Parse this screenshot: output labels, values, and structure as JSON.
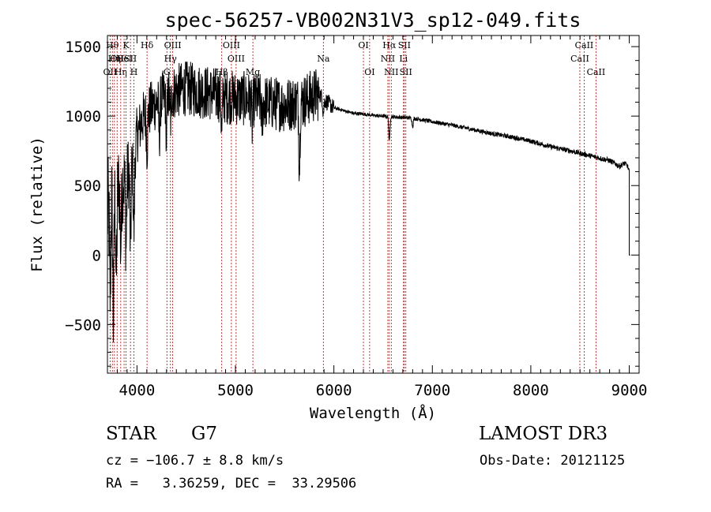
{
  "chart_data": {
    "type": "line",
    "title": "spec-56257-VB002N31V3_sp12-049.fits",
    "xlabel": "Wavelength (Å)",
    "ylabel": "Flux (relative)",
    "xlim": [
      3700,
      9100
    ],
    "ylim": [
      -850,
      1580
    ],
    "xticks": [
      4000,
      5000,
      6000,
      7000,
      8000,
      9000
    ],
    "yticks": [
      -500,
      0,
      500,
      1000,
      1500
    ],
    "continuum": [
      [
        3700,
        300
      ],
      [
        3750,
        420
      ],
      [
        3800,
        480
      ],
      [
        3850,
        520
      ],
      [
        3900,
        580
      ],
      [
        3950,
        650
      ],
      [
        4000,
        850
      ],
      [
        4050,
        970
      ],
      [
        4100,
        1020
      ],
      [
        4200,
        1100
      ],
      [
        4300,
        1150
      ],
      [
        4400,
        1180
      ],
      [
        4500,
        1200
      ],
      [
        4600,
        1185
      ],
      [
        4700,
        1170
      ],
      [
        4800,
        1155
      ],
      [
        4900,
        1140
      ],
      [
        5000,
        1130
      ],
      [
        5100,
        1125
      ],
      [
        5200,
        1120
      ],
      [
        5300,
        1100
      ],
      [
        5400,
        1090
      ],
      [
        5500,
        1080
      ],
      [
        5600,
        1095
      ],
      [
        5700,
        1110
      ],
      [
        5800,
        1150
      ],
      [
        5850,
        1160
      ],
      [
        5900,
        1120
      ],
      [
        6000,
        1060
      ],
      [
        6100,
        1040
      ],
      [
        6200,
        1020
      ],
      [
        6300,
        1015
      ],
      [
        6400,
        1005
      ],
      [
        6500,
        1000
      ],
      [
        6600,
        995
      ],
      [
        6700,
        990
      ],
      [
        6800,
        985
      ],
      [
        7000,
        960
      ],
      [
        7200,
        935
      ],
      [
        7400,
        905
      ],
      [
        7600,
        875
      ],
      [
        7800,
        850
      ],
      [
        8000,
        820
      ],
      [
        8200,
        780
      ],
      [
        8400,
        750
      ],
      [
        8600,
        715
      ],
      [
        8800,
        680
      ],
      [
        8900,
        640
      ],
      [
        8950,
        660
      ],
      [
        8980,
        645
      ],
      [
        9000,
        600
      ]
    ],
    "features": [
      {
        "x": 3727,
        "depth": 650
      },
      {
        "x": 3760,
        "depth": 900
      },
      {
        "x": 3790,
        "depth": 650
      },
      {
        "x": 3835,
        "depth": 450
      },
      {
        "x": 3889,
        "depth": 500
      },
      {
        "x": 3934,
        "depth": 600
      },
      {
        "x": 3969,
        "depth": 550
      },
      {
        "x": 4102,
        "depth": 250
      },
      {
        "x": 4227,
        "depth": 250
      },
      {
        "x": 4300,
        "depth": 300
      },
      {
        "x": 4340,
        "depth": 200
      },
      {
        "x": 4861,
        "depth": 250
      },
      {
        "x": 5172,
        "depth": 200
      },
      {
        "x": 5270,
        "depth": 150
      },
      {
        "x": 5650,
        "depth": 450
      },
      {
        "x": 5893,
        "depth": 100
      },
      {
        "x": 6563,
        "depth": 180
      },
      {
        "x": 6800,
        "depth": 60
      }
    ],
    "lines": [
      {
        "x": 3727,
        "label": "OII",
        "row": 2
      },
      {
        "x": 3750,
        "label": "Hθ",
        "row": 0
      },
      {
        "x": 3771,
        "label": "Hη",
        "row": 1
      },
      {
        "x": 3798,
        "label": "OII",
        "row": 1
      },
      {
        "x": 3835,
        "label": "Hη",
        "row": 2
      },
      {
        "x": 3869,
        "label": "HeI",
        "row": 1
      },
      {
        "x": 3889,
        "label": "K",
        "row": 0
      },
      {
        "x": 3934,
        "label": "SII",
        "row": 1
      },
      {
        "x": 3969,
        "label": "H",
        "row": 2
      },
      {
        "x": 4102,
        "label": "Hδ",
        "row": 0
      },
      {
        "x": 4304,
        "label": "G",
        "row": 2
      },
      {
        "x": 4340,
        "label": "Hγ",
        "row": 1
      },
      {
        "x": 4363,
        "label": "OIII",
        "row": 0
      },
      {
        "x": 4861,
        "label": "Hβ",
        "row": 2
      },
      {
        "x": 4959,
        "label": "OIII",
        "row": 0
      },
      {
        "x": 5007,
        "label": "OIII",
        "row": 1
      },
      {
        "x": 5177,
        "label": "Mg",
        "row": 2
      },
      {
        "x": 5893,
        "label": "Na",
        "row": 1
      },
      {
        "x": 6300,
        "label": "OI",
        "row": 0
      },
      {
        "x": 6363,
        "label": "OI",
        "row": 2
      },
      {
        "x": 6548,
        "label": "NII",
        "row": 1
      },
      {
        "x": 6563,
        "label": "Hα",
        "row": 0
      },
      {
        "x": 6583,
        "label": "NII",
        "row": 2
      },
      {
        "x": 6707,
        "label": "Li",
        "row": 1
      },
      {
        "x": 6716,
        "label": "SII",
        "row": 0
      },
      {
        "x": 6731,
        "label": "SII",
        "row": 2
      },
      {
        "x": 8498,
        "label": "CaII",
        "row": 1
      },
      {
        "x": 8542,
        "label": "CaII",
        "row": 0
      },
      {
        "x": 8662,
        "label": "CaII",
        "row": 2
      }
    ]
  },
  "info": {
    "class_label": "STAR",
    "subclass": "G7",
    "survey": "LAMOST DR3",
    "redshift_text": "cz = −106.7 ± 8.8 km/s",
    "obs_date": "Obs-Date: 20121125",
    "coords": "RA =   3.36259, DEC =  33.29506"
  },
  "colors": {
    "spectrum": "#000000",
    "line_marker": "#cc0000",
    "text": "#000000"
  }
}
